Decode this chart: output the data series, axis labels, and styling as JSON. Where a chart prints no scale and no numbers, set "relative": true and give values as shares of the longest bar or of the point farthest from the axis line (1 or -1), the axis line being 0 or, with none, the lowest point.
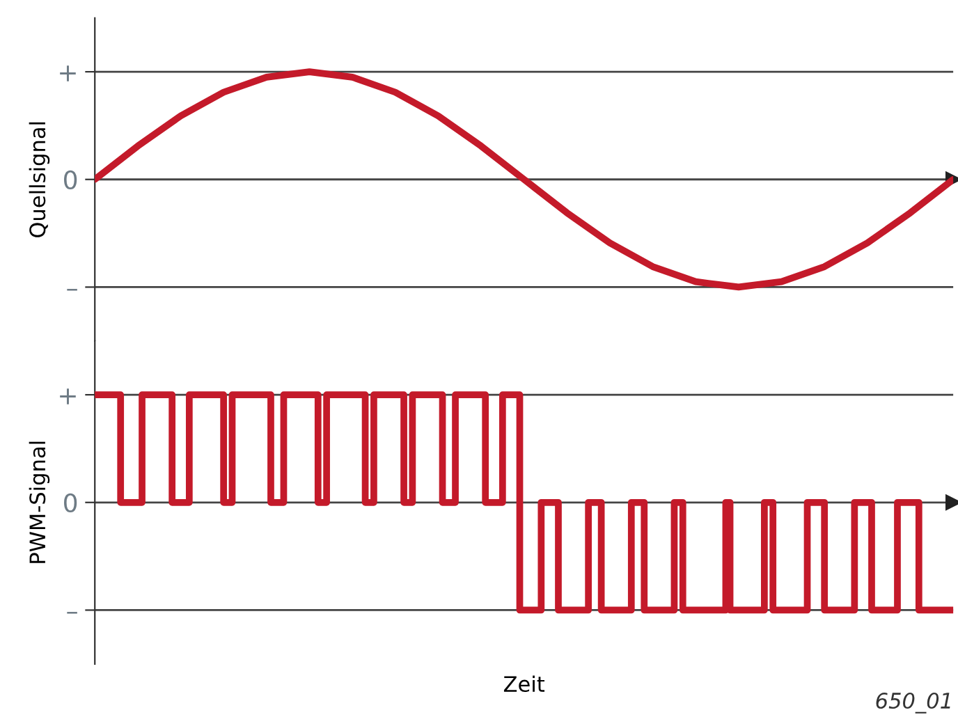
{
  "chart_data": [
    {
      "type": "line",
      "ylabel": "Quellsignal",
      "relative": true,
      "tick_labels": "y",
      "grid": "y",
      "annotations": [
        "+",
        "0",
        "–"
      ],
      "categories": [
        null,
        null,
        null,
        null,
        null,
        null,
        null,
        null,
        null,
        null,
        null,
        null,
        null,
        null,
        null,
        null,
        null,
        null,
        null,
        null,
        null
      ],
      "series": [
        {
          "color": "#c41a2a",
          "values": [
            0,
            0.31,
            0.59,
            0.81,
            0.95,
            1,
            0.95,
            0.81,
            0.59,
            0.31,
            0,
            -0.31,
            -0.59,
            -0.81,
            -0.95,
            -1,
            -0.95,
            -0.81,
            -0.59,
            -0.31,
            0
          ]
        }
      ]
    },
    {
      "type": "step",
      "ylabel": "PWM-Signal",
      "xlabel": "Zeit",
      "relative": true,
      "tick_labels": "y",
      "grid": "y",
      "annotations": [
        "+",
        "0",
        "–",
        "650_01"
      ],
      "categories": [
        null,
        null,
        null,
        null,
        null,
        null,
        null,
        null,
        null,
        null,
        null,
        null,
        null,
        null,
        null,
        null,
        null,
        null,
        null,
        null,
        null,
        null,
        null,
        null,
        null,
        null,
        null,
        null,
        null,
        null,
        null,
        null,
        null,
        null,
        null,
        null,
        null,
        null,
        null,
        null,
        null,
        null,
        null,
        null,
        null,
        null,
        null,
        null,
        null,
        null,
        null,
        null,
        null,
        null,
        null,
        null,
        null,
        null,
        null,
        null,
        null,
        null,
        null,
        null,
        null,
        null,
        null,
        null,
        null,
        null,
        null,
        null,
        null,
        null,
        null,
        null,
        null,
        null,
        null,
        null,
        null,
        null,
        null,
        null,
        null,
        null,
        null,
        null,
        null,
        null,
        null,
        null,
        null,
        null,
        null,
        null,
        null,
        null,
        null,
        null,
        null,
        null,
        null,
        null,
        null,
        null,
        null,
        null,
        null,
        null,
        null,
        null,
        null,
        null,
        null,
        null,
        null,
        null,
        null,
        null,
        null,
        null,
        null,
        null,
        null,
        null,
        null,
        null,
        null,
        null,
        null,
        null,
        null,
        null,
        null,
        null,
        null,
        null,
        null,
        null,
        null,
        null,
        null,
        null,
        null,
        null,
        null,
        null,
        null,
        null,
        null,
        null,
        null,
        null,
        null,
        null,
        null,
        null,
        null,
        null,
        null,
        null,
        null,
        null,
        null,
        null,
        null,
        null,
        null,
        null,
        null,
        null,
        null,
        null,
        null,
        null,
        null,
        null,
        null,
        null,
        null,
        null,
        null,
        null,
        null,
        null,
        null,
        null,
        null,
        null,
        null,
        null,
        null,
        null,
        null,
        null,
        null,
        null,
        null,
        null,
        null
      ],
      "series": [
        {
          "color": "#c41a2a",
          "values": [
            1,
            1,
            1,
            1,
            1,
            1,
            0,
            0,
            0,
            0,
            0,
            1,
            1,
            1,
            1,
            1,
            1,
            1,
            0,
            0,
            0,
            0,
            1,
            1,
            1,
            1,
            1,
            1,
            1,
            1,
            0,
            0,
            1,
            1,
            1,
            1,
            1,
            1,
            1,
            1,
            1,
            0,
            0,
            0,
            1,
            1,
            1,
            1,
            1,
            1,
            1,
            1,
            0,
            0,
            1,
            1,
            1,
            1,
            1,
            1,
            1,
            1,
            1,
            0,
            0,
            1,
            1,
            1,
            1,
            1,
            1,
            1,
            0,
            0,
            1,
            1,
            1,
            1,
            1,
            1,
            1,
            0,
            0,
            0,
            1,
            1,
            1,
            1,
            1,
            1,
            1,
            0,
            0,
            0,
            0,
            1,
            1,
            1,
            1,
            -1,
            -1,
            -1,
            -1,
            -1,
            0,
            0,
            0,
            0,
            -1,
            -1,
            -1,
            -1,
            -1,
            -1,
            -1,
            0,
            0,
            0,
            -1,
            -1,
            -1,
            -1,
            -1,
            -1,
            -1,
            0,
            0,
            0,
            -1,
            -1,
            -1,
            -1,
            -1,
            -1,
            -1,
            0,
            0,
            -1,
            -1,
            -1,
            -1,
            -1,
            -1,
            -1,
            -1,
            -1,
            -1,
            0,
            -1,
            -1,
            -1,
            -1,
            -1,
            -1,
            -1,
            -1,
            0,
            0,
            -1,
            -1,
            -1,
            -1,
            -1,
            -1,
            -1,
            -1,
            0,
            0,
            0,
            0,
            -1,
            -1,
            -1,
            -1,
            -1,
            -1,
            -1,
            0,
            0,
            0,
            0,
            -1,
            -1,
            -1,
            -1,
            -1,
            -1,
            0,
            0,
            0,
            0,
            0,
            -1,
            -1,
            -1,
            -1,
            -1,
            -1,
            -1,
            -1,
            -1
          ]
        }
      ]
    }
  ]
}
